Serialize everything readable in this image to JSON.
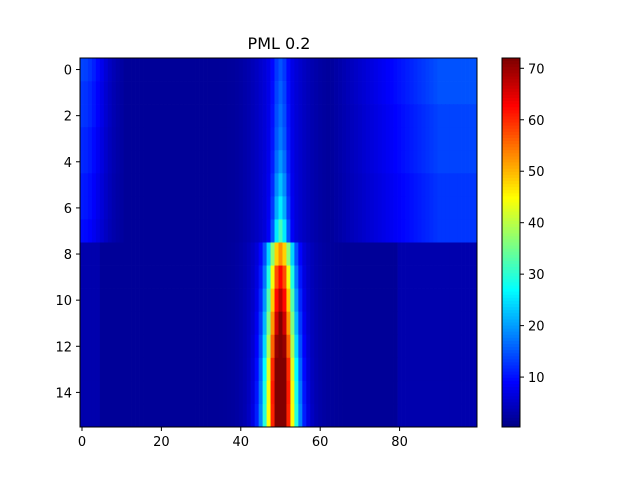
{
  "chart_data": {
    "type": "heatmap",
    "title": "PML 0.2",
    "xlabel": "",
    "ylabel": "",
    "colormap": "jet",
    "rows": 16,
    "cols": 100,
    "xlim": [
      -0.5,
      99.5
    ],
    "ylim": [
      15.5,
      -0.5
    ],
    "x_ticks": [
      0,
      20,
      40,
      60,
      80
    ],
    "y_ticks": [
      0,
      2,
      4,
      6,
      8,
      10,
      12,
      14
    ],
    "colorbar": {
      "min": 0.3,
      "max": 72,
      "ticks": [
        10,
        20,
        30,
        40,
        50,
        60,
        70
      ]
    },
    "description_of_field": {
      "center_column": 50,
      "peak_value_rows_11_15": 72,
      "rows_0_7_center_peak": [
        9,
        10,
        11,
        12,
        14,
        17,
        20,
        26
      ],
      "rows_8_15_center_peak": [
        45,
        55,
        60,
        64,
        68,
        72,
        72,
        70
      ],
      "left_edge_values_rows_0_7": [
        14,
        13,
        13,
        12,
        12,
        11,
        11,
        10
      ],
      "right_edge_values_rows_0_7": [
        15,
        15,
        14,
        14,
        14,
        13,
        13,
        13
      ],
      "background_value": 2
    }
  }
}
